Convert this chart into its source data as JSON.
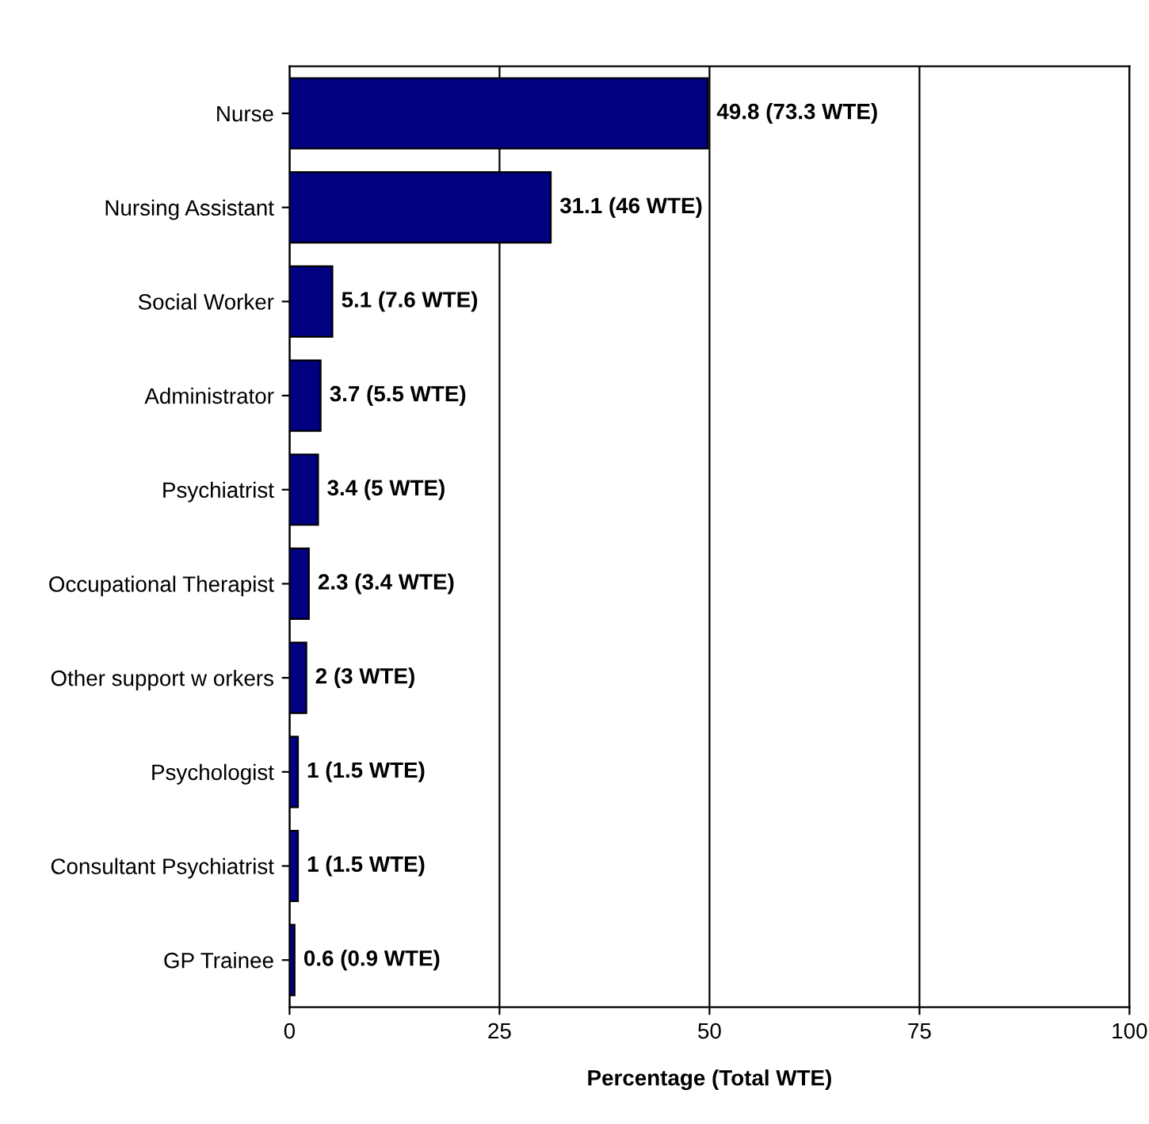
{
  "chart_data": {
    "type": "bar",
    "orientation": "horizontal",
    "categories": [
      "Nurse",
      "Nursing Assistant",
      "Social Worker",
      "Administrator",
      "Psychiatrist",
      "Occupational Therapist",
      "Other support w orkers",
      "Psychologist",
      "Consultant Psychiatrist",
      "GP Trainee"
    ],
    "values": [
      49.8,
      31.1,
      5.1,
      3.7,
      3.4,
      2.3,
      2,
      1,
      1,
      0.6
    ],
    "value_labels": [
      "49.8 (73.3 WTE)",
      "31.1 (46 WTE)",
      "5.1 (7.6 WTE)",
      "3.7 (5.5 WTE)",
      "3.4 (5 WTE)",
      "2.3 (3.4 WTE)",
      "2 (3 WTE)",
      "1 (1.5 WTE)",
      "1 (1.5 WTE)",
      "0.6 (0.9 WTE)"
    ],
    "color": "#000080",
    "xlabel": "Percentage (Total WTE)",
    "xlim": [
      0,
      100
    ],
    "xticks": [
      0,
      25,
      50,
      75,
      100
    ],
    "grid": "x",
    "legend": false
  }
}
